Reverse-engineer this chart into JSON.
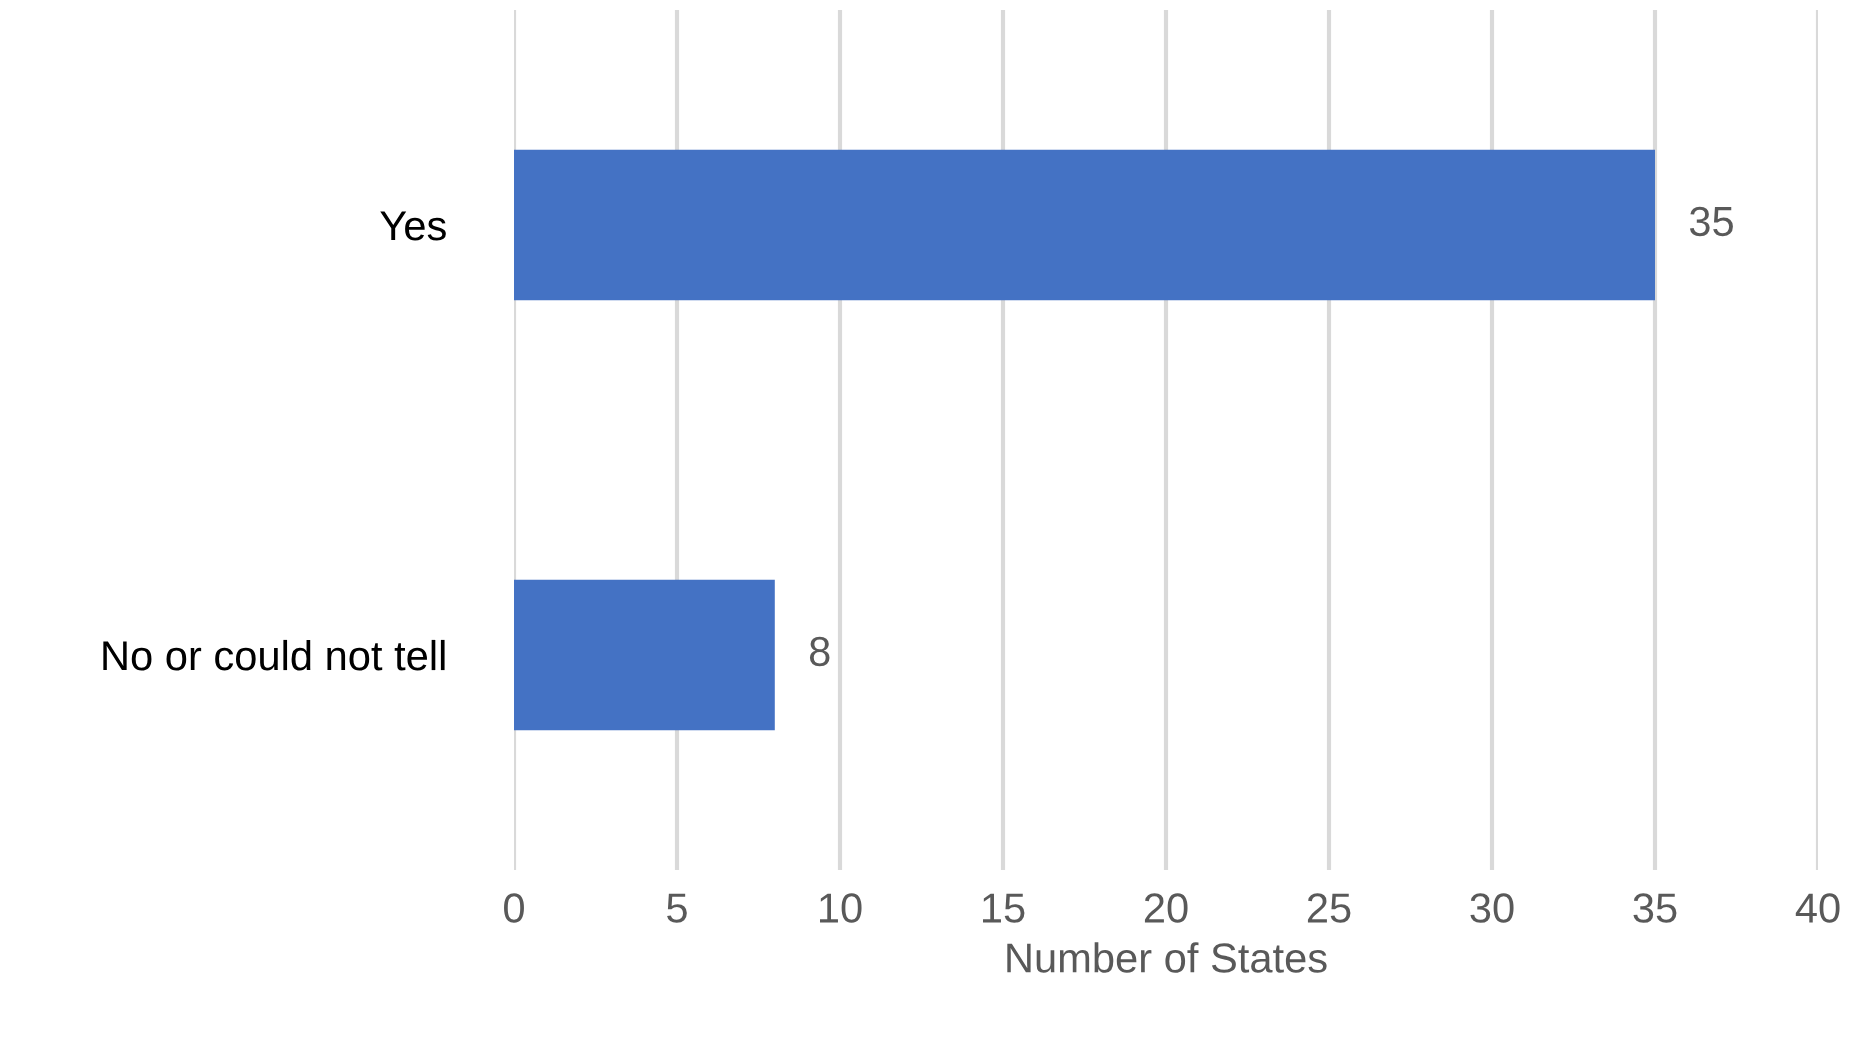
{
  "chart_data": {
    "type": "bar",
    "orientation": "horizontal",
    "xlabel": "Number of States",
    "categories": [
      "Yes",
      "No or could not tell"
    ],
    "series": [
      {
        "color": "#4472c4",
        "values": [
          35,
          8
        ]
      }
    ],
    "xlim": [
      0,
      40
    ],
    "xticks": [
      0,
      5,
      10,
      15,
      20,
      25,
      30,
      35,
      40
    ],
    "grid": "x",
    "data_labels": true,
    "legend": false
  }
}
